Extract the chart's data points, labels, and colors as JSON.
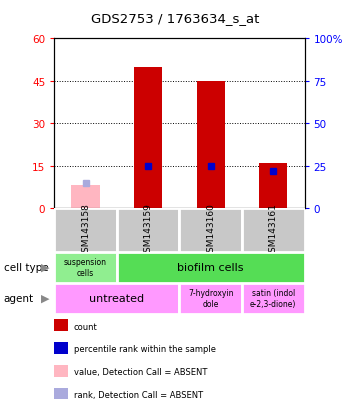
{
  "title": "GDS2753 / 1763634_s_at",
  "samples": [
    "GSM143158",
    "GSM143159",
    "GSM143160",
    "GSM143161"
  ],
  "count_values": [
    null,
    50,
    45,
    16
  ],
  "count_absent": [
    8,
    null,
    null,
    null
  ],
  "percentile_values": [
    null,
    25,
    25,
    22
  ],
  "percentile_absent": [
    15,
    null,
    null,
    null
  ],
  "ylim_left": [
    0,
    60
  ],
  "ylim_right": [
    0,
    100
  ],
  "yticks_left": [
    0,
    15,
    30,
    45,
    60
  ],
  "yticks_right": [
    0,
    25,
    50,
    75,
    100
  ],
  "ytick_labels_right": [
    "0",
    "25",
    "50",
    "75",
    "100%"
  ],
  "bar_width": 0.45,
  "count_color": "#CC0000",
  "count_absent_color": "#FFB6C1",
  "percentile_color": "#0000CC",
  "percentile_absent_color": "#AAAADD",
  "sample_box_color": "#C8C8C8",
  "cell_susp_color": "#90EE90",
  "cell_bio_color": "#55DD55",
  "agent_color": "#FF99FF",
  "legend_items": [
    {
      "color": "#CC0000",
      "label": "count"
    },
    {
      "color": "#0000CC",
      "label": "percentile rank within the sample"
    },
    {
      "color": "#FFB6C1",
      "label": "value, Detection Call = ABSENT"
    },
    {
      "color": "#AAAADD",
      "label": "rank, Detection Call = ABSENT"
    }
  ]
}
